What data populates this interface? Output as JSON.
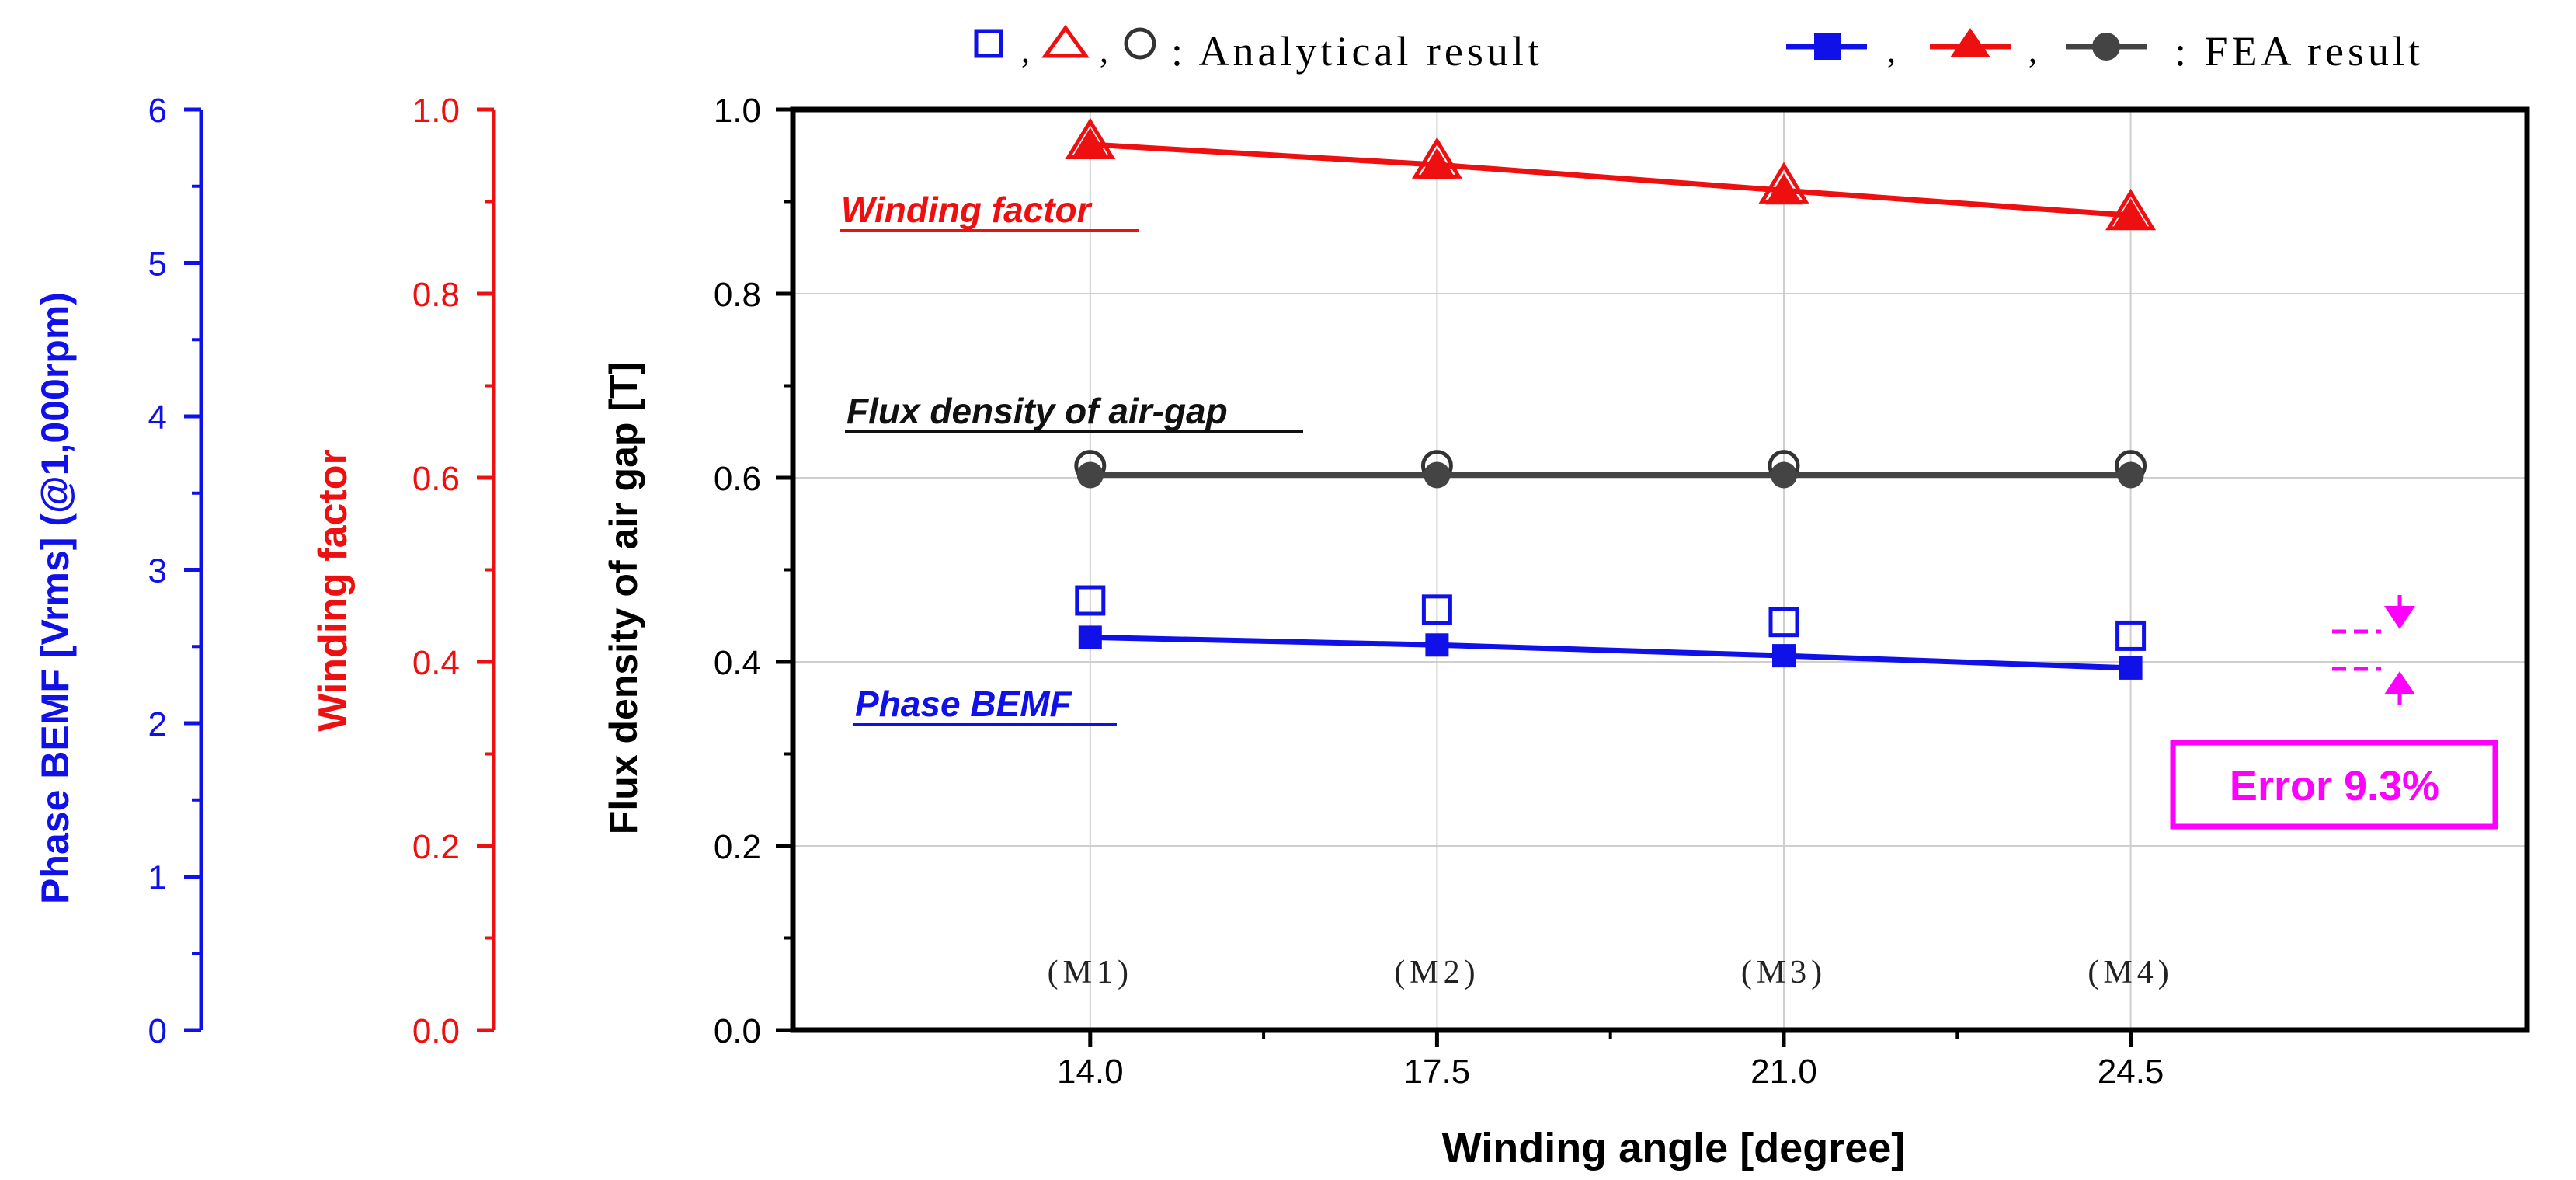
{
  "chart_data": {
    "type": "line",
    "x": [
      14.0,
      17.5,
      21.0,
      24.5
    ],
    "x_tick_labels": [
      "14.0",
      "17.5",
      "21.0",
      "24.5"
    ],
    "model_labels": [
      "(M1)",
      "(M2)",
      "(M3)",
      "(M4)"
    ],
    "xlabel": "Winding angle [degree]",
    "xlim": [
      11.0,
      28.5
    ],
    "axes": {
      "bemf": {
        "title": "Phase BEMF [Vrms] (@1,000rpm)",
        "ylim": [
          0,
          6
        ],
        "ticks": [
          "0",
          "1",
          "2",
          "3",
          "4",
          "5",
          "6"
        ],
        "color": "#1010e8"
      },
      "winding": {
        "title": "Winding factor",
        "ylim": [
          0,
          1
        ],
        "ticks": [
          "0.0",
          "0.2",
          "0.4",
          "0.6",
          "0.8",
          "1.0"
        ],
        "color": "#ee1010"
      },
      "flux": {
        "title": "Flux density of air gap [T]",
        "ylim": [
          0,
          1
        ],
        "ticks": [
          "0.0",
          "0.2",
          "0.4",
          "0.6",
          "0.8",
          "1.0"
        ],
        "color": "#000000"
      }
    },
    "series": [
      {
        "name": "Winding factor (Analytical)",
        "axis": "winding",
        "marker": "triangle-open",
        "color": "#ee1010",
        "values": [
          0.965,
          0.944,
          0.917,
          0.888
        ]
      },
      {
        "name": "Winding factor (FEA)",
        "axis": "winding",
        "marker": "triangle-filled",
        "line": true,
        "color": "#ee1010",
        "values": [
          0.962,
          0.94,
          0.912,
          0.885
        ]
      },
      {
        "name": "Flux density of air-gap (Analytical)",
        "axis": "flux",
        "marker": "circle-open",
        "color": "#333333",
        "values": [
          0.613,
          0.613,
          0.613,
          0.613
        ]
      },
      {
        "name": "Flux density of air-gap (FEA)",
        "axis": "flux",
        "marker": "circle-filled",
        "line": true,
        "color": "#444444",
        "values": [
          0.603,
          0.603,
          0.603,
          0.603
        ]
      },
      {
        "name": "Phase BEMF (Analytical)",
        "axis": "bemf",
        "marker": "square-open",
        "color": "#1010e8",
        "values": [
          2.8,
          2.74,
          2.66,
          2.57
        ]
      },
      {
        "name": "Phase BEMF (FEA)",
        "axis": "bemf",
        "marker": "square-filled",
        "line": true,
        "color": "#1010e8",
        "values": [
          2.56,
          2.51,
          2.44,
          2.36
        ]
      }
    ],
    "annotations": {
      "winding_label": "Winding factor",
      "flux_label": "Flux density of air-gap",
      "bemf_label": "Phase BEMF",
      "error_label": "Error 9.3%"
    },
    "legend": {
      "analytical_sep": ",",
      "analytical_text": ": Analytical result",
      "fea_text": ": FEA  result",
      "position": "top"
    }
  }
}
